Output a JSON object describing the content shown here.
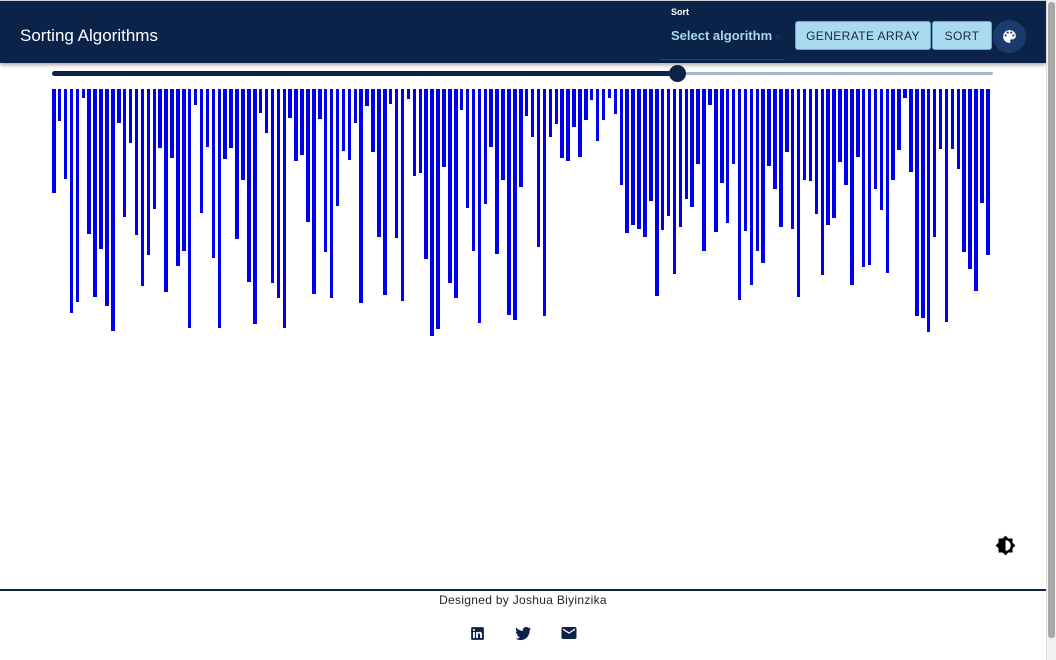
{
  "header": {
    "title": "Sorting Algorithms",
    "sort_label": "Sort",
    "sort_placeholder": "Select algorithm",
    "generate_label": "GENERATE ARRAY",
    "sort_button_label": "SORT",
    "palette_icon": "palette-icon"
  },
  "speed_slider": {
    "value": 0.664
  },
  "array": {
    "color": "#0000ee",
    "values": [
      104,
      32,
      90,
      224,
      213,
      9,
      145,
      208,
      160,
      217,
      242,
      34,
      128,
      54,
      146,
      197,
      166,
      120,
      59,
      203,
      69,
      177,
      162,
      239,
      16,
      124,
      58,
      169,
      239,
      70,
      59,
      150,
      91,
      193,
      235,
      24,
      44,
      194,
      209,
      239,
      29,
      72,
      66,
      133,
      205,
      30,
      163,
      209,
      117,
      62,
      71,
      34,
      214,
      17,
      63,
      148,
      206,
      15,
      149,
      212,
      10,
      87,
      84,
      170,
      247,
      240,
      78,
      194,
      209,
      21,
      119,
      162,
      234,
      115,
      58,
      165,
      91,
      226,
      231,
      98,
      27,
      48,
      158,
      227,
      48,
      35,
      69,
      72,
      38,
      68,
      31,
      11,
      52,
      31,
      9,
      25,
      96,
      144,
      136,
      140,
      148,
      112,
      207,
      141,
      127,
      185,
      138,
      110,
      118,
      75,
      162,
      16,
      143,
      94,
      134,
      75,
      211,
      142,
      196,
      162,
      174,
      77,
      100,
      138,
      63,
      140,
      208,
      91,
      92,
      125,
      186,
      136,
      129,
      73,
      96,
      196,
      68,
      178,
      176,
      100,
      121,
      184,
      91,
      61,
      9,
      83,
      227,
      229,
      243,
      148,
      60,
      233,
      60,
      80,
      163,
      180,
      202,
      114,
      166
    ]
  },
  "footer": {
    "credit": "Designed by Joshua Biyinzika",
    "icons": [
      "linkedin-icon",
      "twitter-icon",
      "mail-icon"
    ]
  },
  "theme_icon": "brightness-icon"
}
